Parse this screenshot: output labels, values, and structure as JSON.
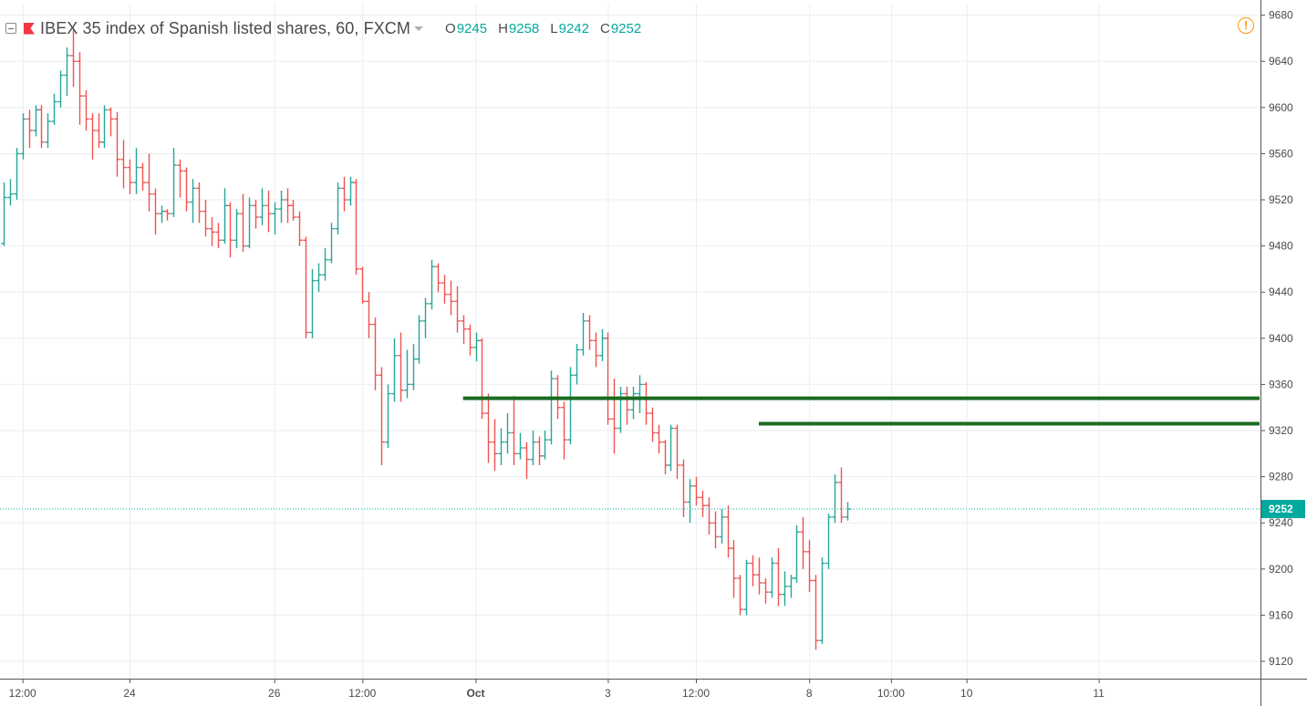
{
  "header": {
    "title": "IBEX 35 index of Spanish listed shares, 60, FXCM",
    "ohlc": {
      "open_label": "O",
      "open": "9245",
      "high_label": "H",
      "high": "9258",
      "low_label": "L",
      "low": "9242",
      "close_label": "C",
      "close": "9252"
    }
  },
  "icons": {
    "collapse": "collapse-icon",
    "symbol_flag": "flag-icon",
    "dropdown": "caret-down-icon",
    "alert": "warning-icon",
    "alert_glyph": "!"
  },
  "colors": {
    "up": "#26a69a",
    "down": "#ef5350",
    "level_line": "#1b6b20",
    "last_price": "#00a99d",
    "warning": "#ff9800"
  },
  "chart_data": {
    "type": "ohlc",
    "title": "IBEX 35 index of Spanish listed shares, 60, FXCM",
    "ylim": [
      9105,
      9690
    ],
    "y_ticks": [
      9120,
      9160,
      9200,
      9240,
      9280,
      9320,
      9360,
      9400,
      9440,
      9480,
      9520,
      9560,
      9600,
      9640,
      9680
    ],
    "x_tick_labels": [
      {
        "label": "12:00",
        "bar": 3,
        "bold": false
      },
      {
        "label": "24",
        "bar": 20,
        "bold": false
      },
      {
        "label": "26",
        "bar": 43,
        "bold": false
      },
      {
        "label": "12:00",
        "bar": 57,
        "bold": false
      },
      {
        "label": "Oct",
        "bar": 75,
        "bold": true
      },
      {
        "label": "3",
        "bar": 96,
        "bold": false
      },
      {
        "label": "12:00",
        "bar": 110,
        "bold": false
      },
      {
        "label": "8",
        "bar": 128,
        "bold": false
      },
      {
        "label": "10:00",
        "bar": 141,
        "bold": false
      },
      {
        "label": "10",
        "bar": 153,
        "bold": false
      },
      {
        "label": "11",
        "bar": 174,
        "bold": false
      }
    ],
    "last_price": 9252,
    "grid": true,
    "series": [
      {
        "ohlc": [
          [
            9482,
            9535,
            9480,
            9522
          ],
          [
            9522,
            9538,
            9515,
            9525
          ],
          [
            9525,
            9565,
            9520,
            9560
          ],
          [
            9560,
            9595,
            9555,
            9590
          ],
          [
            9590,
            9598,
            9565,
            9580
          ],
          [
            9580,
            9602,
            9575,
            9598
          ],
          [
            9598,
            9602,
            9565,
            9570
          ],
          [
            9570,
            9595,
            9565,
            9588
          ],
          [
            9588,
            9612,
            9585,
            9605
          ],
          [
            9605,
            9632,
            9600,
            9628
          ],
          [
            9628,
            9652,
            9610,
            9645
          ],
          [
            9645,
            9668,
            9618,
            9640
          ],
          [
            9640,
            9648,
            9585,
            9610
          ],
          [
            9610,
            9615,
            9580,
            9590
          ],
          [
            9590,
            9595,
            9555,
            9580
          ],
          [
            9580,
            9595,
            9565,
            9570
          ],
          [
            9570,
            9602,
            9565,
            9598
          ],
          [
            9598,
            9600,
            9575,
            9590
          ],
          [
            9590,
            9596,
            9540,
            9555
          ],
          [
            9555,
            9572,
            9530,
            9548
          ],
          [
            9548,
            9555,
            9525,
            9535
          ],
          [
            9535,
            9565,
            9525,
            9548
          ],
          [
            9548,
            9552,
            9528,
            9535
          ],
          [
            9535,
            9560,
            9510,
            9525
          ],
          [
            9525,
            9530,
            9490,
            9508
          ],
          [
            9508,
            9515,
            9500,
            9510
          ],
          [
            9510,
            9512,
            9502,
            9508
          ],
          [
            9508,
            9565,
            9505,
            9550
          ],
          [
            9550,
            9555,
            9522,
            9545
          ],
          [
            9545,
            9548,
            9510,
            9518
          ],
          [
            9518,
            9538,
            9500,
            9530
          ],
          [
            9530,
            9535,
            9500,
            9510
          ],
          [
            9510,
            9520,
            9488,
            9495
          ],
          [
            9495,
            9505,
            9480,
            9492
          ],
          [
            9492,
            9500,
            9478,
            9485
          ],
          [
            9485,
            9530,
            9482,
            9515
          ],
          [
            9515,
            9518,
            9470,
            9485
          ],
          [
            9485,
            9512,
            9478,
            9508
          ],
          [
            9508,
            9525,
            9475,
            9480
          ],
          [
            9480,
            9522,
            9478,
            9515
          ],
          [
            9515,
            9520,
            9495,
            9505
          ],
          [
            9505,
            9530,
            9498,
            9515
          ],
          [
            9515,
            9528,
            9492,
            9508
          ],
          [
            9508,
            9518,
            9490,
            9512
          ],
          [
            9512,
            9528,
            9500,
            9520
          ],
          [
            9520,
            9530,
            9500,
            9515
          ],
          [
            9515,
            9520,
            9502,
            9505
          ],
          [
            9505,
            9510,
            9480,
            9485
          ],
          [
            9485,
            9488,
            9400,
            9405
          ],
          [
            9405,
            9460,
            9400,
            9450
          ],
          [
            9450,
            9465,
            9440,
            9455
          ],
          [
            9455,
            9478,
            9450,
            9468
          ],
          [
            9468,
            9500,
            9465,
            9495
          ],
          [
            9495,
            9535,
            9490,
            9530
          ],
          [
            9530,
            9540,
            9510,
            9520
          ],
          [
            9520,
            9540,
            9515,
            9535
          ],
          [
            9535,
            9538,
            9455,
            9460
          ],
          [
            9460,
            9462,
            9430,
            9432
          ],
          [
            9432,
            9440,
            9400,
            9412
          ],
          [
            9412,
            9418,
            9355,
            9368
          ],
          [
            9368,
            9375,
            9290,
            9310
          ],
          [
            9310,
            9360,
            9305,
            9352
          ],
          [
            9352,
            9400,
            9345,
            9385
          ],
          [
            9385,
            9405,
            9345,
            9355
          ],
          [
            9355,
            9390,
            9348,
            9360
          ],
          [
            9360,
            9395,
            9355,
            9382
          ],
          [
            9382,
            9420,
            9378,
            9415
          ],
          [
            9415,
            9435,
            9400,
            9430
          ],
          [
            9430,
            9468,
            9425,
            9462
          ],
          [
            9462,
            9465,
            9440,
            9448
          ],
          [
            9448,
            9455,
            9430,
            9438
          ],
          [
            9438,
            9450,
            9420,
            9432
          ],
          [
            9432,
            9445,
            9405,
            9415
          ],
          [
            9415,
            9420,
            9395,
            9408
          ],
          [
            9408,
            9412,
            9385,
            9392
          ],
          [
            9392,
            9405,
            9380,
            9398
          ],
          [
            9398,
            9400,
            9330,
            9335
          ],
          [
            9335,
            9352,
            9292,
            9310
          ],
          [
            9310,
            9330,
            9285,
            9300
          ],
          [
            9300,
            9322,
            9290,
            9310
          ],
          [
            9310,
            9335,
            9300,
            9318
          ],
          [
            9318,
            9350,
            9290,
            9300
          ],
          [
            9300,
            9318,
            9295,
            9305
          ],
          [
            9305,
            9310,
            9278,
            9295
          ],
          [
            9295,
            9320,
            9290,
            9310
          ],
          [
            9310,
            9315,
            9290,
            9298
          ],
          [
            9298,
            9320,
            9295,
            9312
          ],
          [
            9312,
            9372,
            9308,
            9365
          ],
          [
            9365,
            9368,
            9330,
            9340
          ],
          [
            9340,
            9345,
            9295,
            9312
          ],
          [
            9312,
            9375,
            9308,
            9368
          ],
          [
            9368,
            9395,
            9360,
            9390
          ],
          [
            9390,
            9422,
            9385,
            9415
          ],
          [
            9415,
            9420,
            9390,
            9398
          ],
          [
            9398,
            9405,
            9375,
            9385
          ],
          [
            9385,
            9408,
            9380,
            9400
          ],
          [
            9400,
            9405,
            9325,
            9330
          ],
          [
            9330,
            9365,
            9300,
            9322
          ],
          [
            9322,
            9358,
            9318,
            9352
          ],
          [
            9352,
            9358,
            9325,
            9338
          ],
          [
            9338,
            9358,
            9330,
            9352
          ],
          [
            9352,
            9368,
            9335,
            9360
          ],
          [
            9360,
            9362,
            9325,
            9335
          ],
          [
            9335,
            9340,
            9310,
            9318
          ],
          [
            9318,
            9325,
            9300,
            9310
          ],
          [
            9310,
            9312,
            9282,
            9290
          ],
          [
            9290,
            9325,
            9285,
            9322
          ],
          [
            9322,
            9325,
            9278,
            9290
          ],
          [
            9290,
            9295,
            9245,
            9258
          ],
          [
            9258,
            9278,
            9240,
            9272
          ],
          [
            9272,
            9280,
            9255,
            9262
          ],
          [
            9262,
            9268,
            9245,
            9255
          ],
          [
            9255,
            9262,
            9230,
            9240
          ],
          [
            9240,
            9250,
            9218,
            9228
          ],
          [
            9228,
            9252,
            9222,
            9245
          ],
          [
            9245,
            9255,
            9210,
            9218
          ],
          [
            9218,
            9225,
            9175,
            9192
          ],
          [
            9192,
            9195,
            9160,
            9165
          ],
          [
            9165,
            9208,
            9160,
            9205
          ],
          [
            9205,
            9212,
            9185,
            9195
          ],
          [
            9195,
            9210,
            9178,
            9188
          ],
          [
            9188,
            9192,
            9170,
            9180
          ],
          [
            9180,
            9210,
            9175,
            9205
          ],
          [
            9205,
            9218,
            9168,
            9178
          ],
          [
            9178,
            9198,
            9168,
            9185
          ],
          [
            9185,
            9195,
            9175,
            9192
          ],
          [
            9192,
            9238,
            9188,
            9232
          ],
          [
            9232,
            9245,
            9200,
            9215
          ],
          [
            9215,
            9225,
            9180,
            9190
          ],
          [
            9190,
            9195,
            9130,
            9138
          ],
          [
            9138,
            9210,
            9135,
            9205
          ],
          [
            9205,
            9248,
            9200,
            9245
          ],
          [
            9245,
            9282,
            9240,
            9275
          ],
          [
            9275,
            9288,
            9240,
            9245
          ],
          [
            9245,
            9258,
            9242,
            9252
          ]
        ]
      }
    ],
    "levels": [
      {
        "price": 9348,
        "from_bar": 73
      },
      {
        "price": 9326,
        "from_bar": 120
      }
    ]
  }
}
